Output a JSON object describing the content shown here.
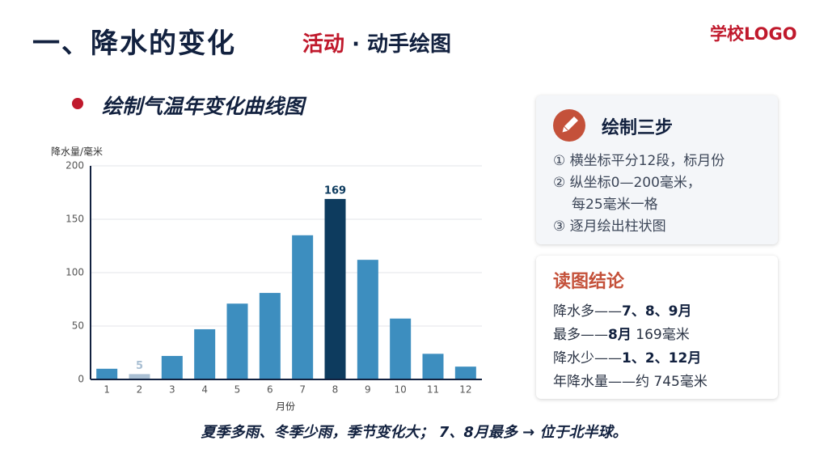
{
  "header": {
    "title": "一、降水的变化",
    "activity_tag": "活动",
    "activity": "· 动手绘图",
    "logo": "学校LOGO",
    "section": "绘制气温年变化曲线图"
  },
  "chart_data": {
    "type": "bar",
    "categories": [
      "1",
      "2",
      "3",
      "4",
      "5",
      "6",
      "7",
      "8",
      "9",
      "10",
      "11",
      "12"
    ],
    "values": [
      10,
      5,
      22,
      47,
      71,
      81,
      135,
      169,
      112,
      57,
      24,
      12
    ],
    "value_labels": [
      null,
      "5",
      null,
      null,
      null,
      null,
      null,
      "169",
      null,
      null,
      null,
      null
    ],
    "colors": [
      "#3d8ebf",
      "#a9bfd3",
      "#3d8ebf",
      "#3d8ebf",
      "#3d8ebf",
      "#3d8ebf",
      "#3d8ebf",
      "#0d3b5e",
      "#3d8ebf",
      "#3d8ebf",
      "#3d8ebf",
      "#3d8ebf"
    ],
    "y_label": "降水量/毫米",
    "x_label": "月份",
    "ylim": [
      0,
      200
    ],
    "yticks": [
      0,
      50,
      100,
      150,
      200
    ],
    "grid": true
  },
  "steps": {
    "title": "绘制三步",
    "items": [
      "① 横坐标平分12段，标月份",
      "② 纵坐标0—200毫米，",
      "每25毫米一格",
      "③ 逐月绘出柱状图"
    ]
  },
  "conclusions": {
    "title": "读图结论",
    "lines": [
      [
        {
          "text": "降水多——",
          "bold": false
        },
        {
          "text": "7、8、9月",
          "bold": true
        }
      ],
      [
        {
          "text": "最多——",
          "bold": false
        },
        {
          "text": "8月",
          "bold": true
        },
        {
          "text": " 169毫米",
          "bold": false
        }
      ],
      [
        {
          "text": "降水少——",
          "bold": false
        },
        {
          "text": "1、2、12月",
          "bold": true
        }
      ],
      [
        {
          "text": "年降水量——约 745毫米",
          "bold": false
        }
      ]
    ]
  },
  "footer": "夏季多雨、冬季少雨，季节变化大；  7、8月最多 → 位于北半球。"
}
